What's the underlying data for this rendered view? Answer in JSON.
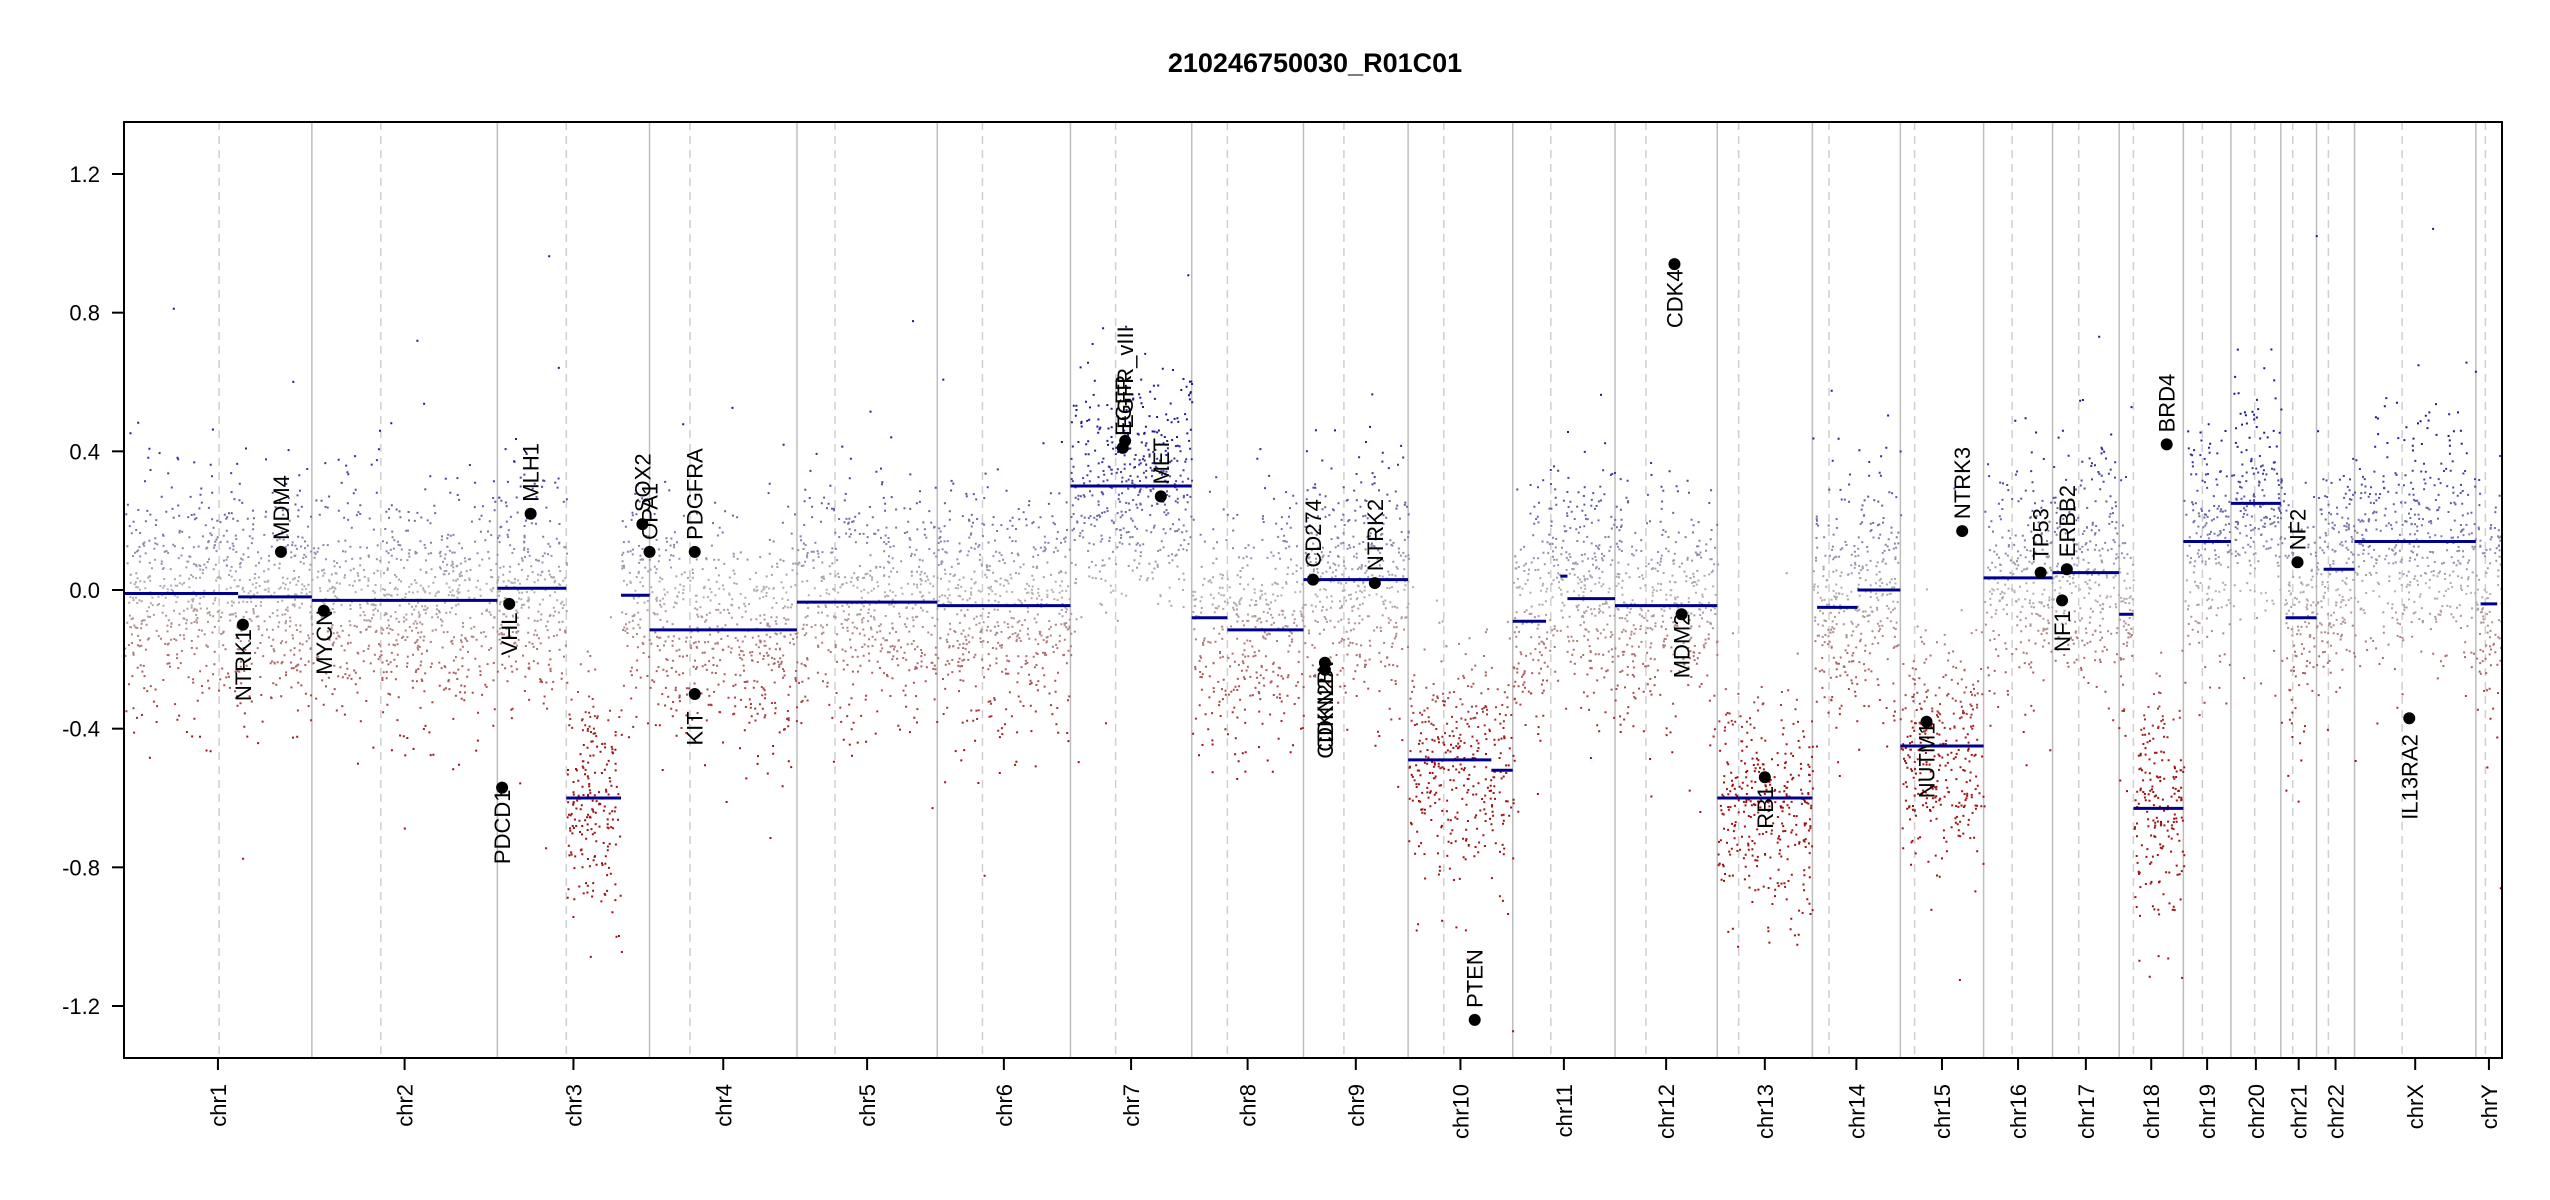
{
  "chart_data": {
    "type": "scatter",
    "title": "210246750030_R01C01",
    "xlabel": "",
    "ylabel": "",
    "ylim": [
      -1.35,
      1.35
    ],
    "yticks": [
      -1.2,
      -0.8,
      -0.4,
      0.0,
      0.4,
      0.8,
      1.2
    ],
    "ytick_labels": [
      "-1.2",
      "-0.8",
      "-0.4",
      "0.0",
      "0.4",
      "0.8",
      "1.2"
    ],
    "colors": {
      "gain": "#1a1a99",
      "loss": "#a01010",
      "neutral": "#b3b3b3",
      "segment": "#00008b",
      "chr_border": "#bdbdbd",
      "centromere": "#cfcfcf",
      "axis": "#000000"
    },
    "chromosomes": [
      {
        "name": "chr1",
        "start": 0.0,
        "end": 0.079,
        "cen": 0.04
      },
      {
        "name": "chr2",
        "start": 0.079,
        "end": 0.157,
        "cen": 0.108
      },
      {
        "name": "chr3",
        "start": 0.157,
        "end": 0.221,
        "cen": 0.186
      },
      {
        "name": "chr4",
        "start": 0.221,
        "end": 0.283,
        "cen": 0.238
      },
      {
        "name": "chr5",
        "start": 0.283,
        "end": 0.342,
        "cen": 0.299
      },
      {
        "name": "chr6",
        "start": 0.342,
        "end": 0.398,
        "cen": 0.361
      },
      {
        "name": "chr7",
        "start": 0.398,
        "end": 0.449,
        "cen": 0.417
      },
      {
        "name": "chr8",
        "start": 0.449,
        "end": 0.496,
        "cen": 0.464
      },
      {
        "name": "chr9",
        "start": 0.496,
        "end": 0.54,
        "cen": 0.513
      },
      {
        "name": "chr10",
        "start": 0.54,
        "end": 0.584,
        "cen": 0.555
      },
      {
        "name": "chr11",
        "start": 0.584,
        "end": 0.627,
        "cen": 0.6
      },
      {
        "name": "chr12",
        "start": 0.627,
        "end": 0.67,
        "cen": 0.64
      },
      {
        "name": "chr13",
        "start": 0.67,
        "end": 0.71,
        "cen": 0.679
      },
      {
        "name": "chr14",
        "start": 0.71,
        "end": 0.747,
        "cen": 0.717
      },
      {
        "name": "chr15",
        "start": 0.747,
        "end": 0.782,
        "cen": 0.753
      },
      {
        "name": "chr16",
        "start": 0.782,
        "end": 0.811,
        "cen": 0.794
      },
      {
        "name": "chr17",
        "start": 0.811,
        "end": 0.839,
        "cen": 0.822
      },
      {
        "name": "chr18",
        "start": 0.839,
        "end": 0.866,
        "cen": 0.845
      },
      {
        "name": "chr19",
        "start": 0.866,
        "end": 0.886,
        "cen": 0.874
      },
      {
        "name": "chr20",
        "start": 0.886,
        "end": 0.907,
        "cen": 0.896
      },
      {
        "name": "chr21",
        "start": 0.907,
        "end": 0.922,
        "cen": 0.912
      },
      {
        "name": "chr22",
        "start": 0.922,
        "end": 0.938,
        "cen": 0.927
      },
      {
        "name": "chrX",
        "start": 0.938,
        "end": 0.989,
        "cen": 0.958
      },
      {
        "name": "chrY",
        "start": 0.989,
        "end": 1.0,
        "cen": 0.993
      }
    ],
    "segments": [
      {
        "x0": 0.0,
        "x1": 0.048,
        "y": -0.01
      },
      {
        "x0": 0.048,
        "x1": 0.079,
        "y": -0.02
      },
      {
        "x0": 0.079,
        "x1": 0.157,
        "y": -0.03
      },
      {
        "x0": 0.157,
        "x1": 0.186,
        "y": 0.005
      },
      {
        "x0": 0.186,
        "x1": 0.209,
        "y": -0.6
      },
      {
        "x0": 0.209,
        "x1": 0.221,
        "y": -0.015
      },
      {
        "x0": 0.221,
        "x1": 0.283,
        "y": -0.115
      },
      {
        "x0": 0.283,
        "x1": 0.342,
        "y": -0.035
      },
      {
        "x0": 0.342,
        "x1": 0.398,
        "y": -0.045
      },
      {
        "x0": 0.398,
        "x1": 0.449,
        "y": 0.3
      },
      {
        "x0": 0.449,
        "x1": 0.464,
        "y": -0.08
      },
      {
        "x0": 0.464,
        "x1": 0.496,
        "y": -0.115
      },
      {
        "x0": 0.496,
        "x1": 0.54,
        "y": 0.03
      },
      {
        "x0": 0.54,
        "x1": 0.575,
        "y": -0.49
      },
      {
        "x0": 0.575,
        "x1": 0.584,
        "y": -0.52
      },
      {
        "x0": 0.584,
        "x1": 0.598,
        "y": -0.09
      },
      {
        "x0": 0.604,
        "x1": 0.607,
        "y": 0.04
      },
      {
        "x0": 0.607,
        "x1": 0.627,
        "y": -0.025
      },
      {
        "x0": 0.627,
        "x1": 0.67,
        "y": -0.045
      },
      {
        "x0": 0.67,
        "x1": 0.71,
        "y": -0.6
      },
      {
        "x0": 0.712,
        "x1": 0.729,
        "y": -0.05
      },
      {
        "x0": 0.729,
        "x1": 0.747,
        "y": 0.0
      },
      {
        "x0": 0.747,
        "x1": 0.782,
        "y": -0.45
      },
      {
        "x0": 0.782,
        "x1": 0.811,
        "y": 0.035
      },
      {
        "x0": 0.811,
        "x1": 0.839,
        "y": 0.05
      },
      {
        "x0": 0.839,
        "x1": 0.845,
        "y": -0.07
      },
      {
        "x0": 0.845,
        "x1": 0.866,
        "y": -0.63
      },
      {
        "x0": 0.866,
        "x1": 0.886,
        "y": 0.14
      },
      {
        "x0": 0.886,
        "x1": 0.907,
        "y": 0.25
      },
      {
        "x0": 0.909,
        "x1": 0.922,
        "y": -0.08
      },
      {
        "x0": 0.925,
        "x1": 0.938,
        "y": 0.06
      },
      {
        "x0": 0.938,
        "x1": 0.989,
        "y": 0.14
      },
      {
        "x0": 0.991,
        "x1": 0.998,
        "y": -0.04
      }
    ],
    "genes": [
      {
        "name": "NTRK1",
        "x": 0.05,
        "y": -0.1,
        "label_side": "below"
      },
      {
        "name": "MDM4",
        "x": 0.066,
        "y": 0.11,
        "label_side": "above"
      },
      {
        "name": "MYCN",
        "x": 0.084,
        "y": -0.06,
        "label_side": "below"
      },
      {
        "name": "VHL",
        "x": 0.162,
        "y": -0.04,
        "label_side": "below"
      },
      {
        "name": "PDCD1",
        "x": 0.159,
        "y": -0.57,
        "label_side": "below"
      },
      {
        "name": "MLH1",
        "x": 0.171,
        "y": 0.22,
        "label_side": "above"
      },
      {
        "name": "SOX2",
        "x": 0.218,
        "y": 0.19,
        "label_side": "above"
      },
      {
        "name": "OPA1",
        "x": 0.221,
        "y": 0.11,
        "label_side": "above"
      },
      {
        "name": "PDGFRA",
        "x": 0.24,
        "y": 0.11,
        "label_side": "above"
      },
      {
        "name": "KIT",
        "x": 0.24,
        "y": -0.3,
        "label_side": "below"
      },
      {
        "name": "EGFR",
        "x": 0.42,
        "y": 0.41,
        "label_side": "above"
      },
      {
        "name": "EGFR_vIII",
        "x": 0.421,
        "y": 0.43,
        "label_side": "above"
      },
      {
        "name": "MET",
        "x": 0.436,
        "y": 0.27,
        "label_side": "above"
      },
      {
        "name": "CD274",
        "x": 0.5,
        "y": 0.03,
        "label_side": "above"
      },
      {
        "name": "CDKN2A",
        "x": 0.505,
        "y": -0.21,
        "label_side": "below"
      },
      {
        "name": "CDKN2B",
        "x": 0.505,
        "y": -0.23,
        "label_side": "below"
      },
      {
        "name": "NTRK2",
        "x": 0.526,
        "y": 0.02,
        "label_side": "above"
      },
      {
        "name": "PTEN",
        "x": 0.568,
        "y": -1.24,
        "label_side": "above"
      },
      {
        "name": "CDK4",
        "x": 0.652,
        "y": 0.94,
        "label_side": "below"
      },
      {
        "name": "MDM2",
        "x": 0.655,
        "y": -0.07,
        "label_side": "below"
      },
      {
        "name": "RB1",
        "x": 0.69,
        "y": -0.54,
        "label_side": "below"
      },
      {
        "name": "NUTM1",
        "x": 0.758,
        "y": -0.38,
        "label_side": "below"
      },
      {
        "name": "NTRK3",
        "x": 0.773,
        "y": 0.17,
        "label_side": "above"
      },
      {
        "name": "TP53",
        "x": 0.806,
        "y": 0.05,
        "label_side": "above"
      },
      {
        "name": "NF1",
        "x": 0.815,
        "y": -0.03,
        "label_side": "below"
      },
      {
        "name": "ERBB2",
        "x": 0.817,
        "y": 0.06,
        "label_side": "above"
      },
      {
        "name": "BRD4",
        "x": 0.859,
        "y": 0.42,
        "label_side": "above"
      },
      {
        "name": "NF2",
        "x": 0.914,
        "y": 0.08,
        "label_side": "above"
      },
      {
        "name": "IL13RA2",
        "x": 0.961,
        "y": -0.37,
        "label_side": "below"
      }
    ]
  }
}
